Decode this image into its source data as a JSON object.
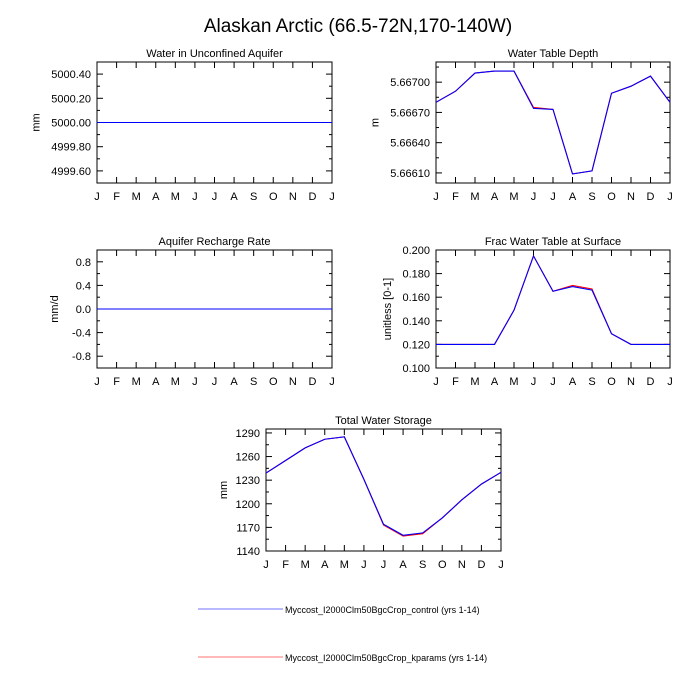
{
  "page_title": "Alaskan Arctic (66.5-72N,170-140W)",
  "month_labels": [
    "J",
    "F",
    "M",
    "A",
    "M",
    "J",
    "J",
    "A",
    "S",
    "O",
    "N",
    "D",
    "J"
  ],
  "colors": {
    "control": "#0000ff",
    "kparams": "#ff0000"
  },
  "legend": {
    "items": [
      {
        "label": "Myccost_I2000Clm50BgcCrop_control (yrs 1-14)",
        "color": "#0000ff"
      },
      {
        "label": "Myccost_I2000Clm50BgcCrop_kparams (yrs 1-14)",
        "color": "#ff0000"
      }
    ]
  },
  "chart_data": [
    {
      "type": "line",
      "title": "Water in Unconfined Aquifer",
      "xlabel": "",
      "ylabel": "mm",
      "ylim": [
        4999.5,
        5000.5
      ],
      "yticks": [
        4999.6,
        4999.8,
        5000.0,
        5000.2,
        5000.4
      ],
      "ytick_labels": [
        "4999.60",
        "4999.80",
        "5000.00",
        "5000.20",
        "5000.40"
      ],
      "series": [
        {
          "name": "Myccost_I2000Clm50BgcCrop_control (yrs 1-14)",
          "values": [
            5000.0,
            5000.0,
            5000.0,
            5000.0,
            5000.0,
            5000.0,
            5000.0,
            5000.0,
            5000.0,
            5000.0,
            5000.0,
            5000.0,
            5000.0
          ]
        },
        {
          "name": "Myccost_I2000Clm50BgcCrop_kparams (yrs 1-14)",
          "values": [
            5000.0,
            5000.0,
            5000.0,
            5000.0,
            5000.0,
            5000.0,
            5000.0,
            5000.0,
            5000.0,
            5000.0,
            5000.0,
            5000.0,
            5000.0
          ]
        }
      ]
    },
    {
      "type": "line",
      "title": "Water Table Depth",
      "xlabel": "",
      "ylabel": "m",
      "ylim": [
        5.666,
        5.6672
      ],
      "yticks": [
        5.6661,
        5.6664,
        5.6667,
        5.667
      ],
      "ytick_labels": [
        "5.66610",
        "5.66640",
        "5.66670",
        "5.66700"
      ],
      "series": [
        {
          "name": "Myccost_I2000Clm50BgcCrop_control (yrs 1-14)",
          "values": [
            5.6668,
            5.66691,
            5.66709,
            5.66711,
            5.66711,
            5.66674,
            5.66673,
            5.66609,
            5.66612,
            5.66689,
            5.66696,
            5.66706,
            5.6668
          ]
        },
        {
          "name": "Myccost_I2000Clm50BgcCrop_kparams (yrs 1-14)",
          "values": [
            5.6668,
            5.66691,
            5.66709,
            5.66711,
            5.66711,
            5.66675,
            5.66673,
            5.66609,
            5.66612,
            5.66689,
            5.66696,
            5.66706,
            5.6668
          ]
        }
      ]
    },
    {
      "type": "line",
      "title": "Aquifer Recharge Rate",
      "xlabel": "",
      "ylabel": "mm/d",
      "ylim": [
        -1.0,
        1.0
      ],
      "yticks": [
        -0.8,
        -0.4,
        0.0,
        0.4,
        0.8
      ],
      "ytick_labels": [
        "-0.8",
        "-0.4",
        "0.0",
        "0.4",
        "0.8"
      ],
      "series": [
        {
          "name": "Myccost_I2000Clm50BgcCrop_control (yrs 1-14)",
          "values": [
            0,
            0,
            0,
            0,
            0,
            0,
            0,
            0,
            0,
            0,
            0,
            0,
            0
          ]
        },
        {
          "name": "Myccost_I2000Clm50BgcCrop_kparams (yrs 1-14)",
          "values": [
            0,
            0,
            0,
            0,
            0,
            0,
            0,
            0,
            0,
            0,
            0,
            0,
            0
          ]
        }
      ]
    },
    {
      "type": "line",
      "title": "Frac Water Table at Surface",
      "xlabel": "",
      "ylabel": "unitless [0-1]",
      "ylim": [
        0.1,
        0.2
      ],
      "yticks": [
        0.1,
        0.12,
        0.14,
        0.16,
        0.18,
        0.2
      ],
      "ytick_labels": [
        "0.100",
        "0.120",
        "0.140",
        "0.160",
        "0.180",
        "0.200"
      ],
      "series": [
        {
          "name": "Myccost_I2000Clm50BgcCrop_control (yrs 1-14)",
          "values": [
            0.12,
            0.12,
            0.12,
            0.12,
            0.149,
            0.195,
            0.165,
            0.169,
            0.166,
            0.129,
            0.12,
            0.12,
            0.12
          ]
        },
        {
          "name": "Myccost_I2000Clm50BgcCrop_kparams (yrs 1-14)",
          "values": [
            0.12,
            0.12,
            0.12,
            0.12,
            0.149,
            0.195,
            0.165,
            0.17,
            0.167,
            0.129,
            0.12,
            0.12,
            0.12
          ]
        }
      ]
    },
    {
      "type": "line",
      "title": "Total Water Storage",
      "xlabel": "",
      "ylabel": "mm",
      "ylim": [
        1140,
        1295
      ],
      "yticks": [
        1140,
        1170,
        1200,
        1230,
        1260,
        1290
      ],
      "ytick_labels": [
        "1140",
        "1170",
        "1200",
        "1230",
        "1260",
        "1290"
      ],
      "series": [
        {
          "name": "Myccost_I2000Clm50BgcCrop_control (yrs 1-14)",
          "values": [
            1239,
            1255,
            1271,
            1282,
            1285,
            1231,
            1174,
            1160,
            1163,
            1182,
            1205,
            1225,
            1240
          ]
        },
        {
          "name": "Myccost_I2000Clm50BgcCrop_kparams (yrs 1-14)",
          "values": [
            1239,
            1255,
            1271,
            1282,
            1285,
            1231,
            1173,
            1159,
            1162,
            1182,
            1205,
            1225,
            1240
          ]
        }
      ]
    }
  ]
}
